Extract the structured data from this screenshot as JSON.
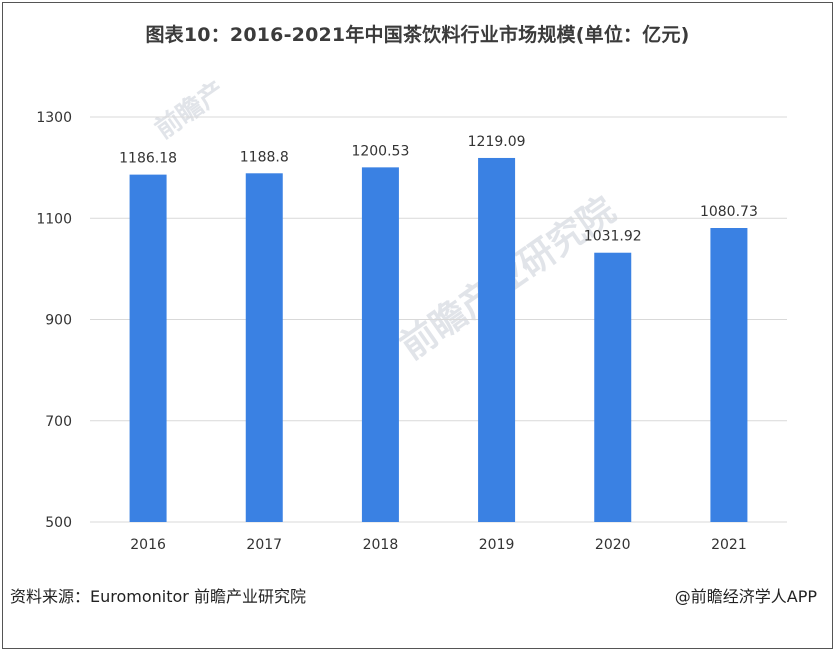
{
  "title": "图表10：2016-2021年中国茶饮料行业市场规模(单位：亿元)",
  "footer": {
    "source": "资料来源：Euromonitor 前瞻产业研究院",
    "brand": "@前瞻经济学人APP"
  },
  "watermark": {
    "text1": "前瞻产",
    "text2": "前瞻产业研究院"
  },
  "colors": {
    "bar": "#3a81e3",
    "grid": "#d9d9d9",
    "axis_text": "#333333"
  },
  "chart_data": {
    "type": "bar",
    "title": "图表10：2016-2021年中国茶饮料行业市场规模(单位：亿元)",
    "categories": [
      "2016",
      "2017",
      "2018",
      "2019",
      "2020",
      "2021"
    ],
    "values": [
      1186.18,
      1188.8,
      1200.53,
      1219.09,
      1031.92,
      1080.73
    ],
    "value_labels": [
      "1186.18",
      "1188.8",
      "1200.53",
      "1219.09",
      "1031.92",
      "1080.73"
    ],
    "ylim": [
      500,
      1300
    ],
    "yticks": [
      500,
      700,
      900,
      1100,
      1300
    ],
    "grid": true,
    "xlabel": "",
    "ylabel": ""
  }
}
